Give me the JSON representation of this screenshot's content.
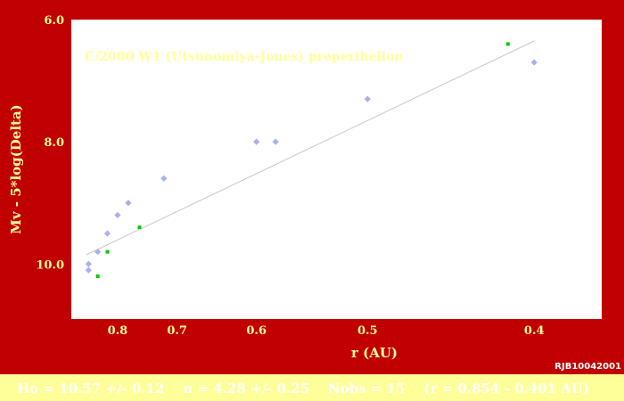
{
  "chart_data": {
    "type": "scatter",
    "title": "C/2000 W1 (Utsunomiya-Jones)  preperihelion",
    "xlabel": "r (AU)",
    "ylabel": "Mv - 5*log(Delta)",
    "credit": "RJB10042001",
    "x_scale": "reciprocal",
    "x_ticks": [
      "0.8",
      "0.7",
      "0.6",
      "0.5",
      "0.4"
    ],
    "y_ticks": [
      "6.0",
      "8.0",
      "10.0"
    ],
    "xlim": [
      0.9,
      0.37
    ],
    "ylim": [
      6.0,
      10.9
    ],
    "grid": false,
    "series": [
      {
        "color": "#aab0f0",
        "marker": "diamond",
        "points": [
          {
            "x": 0.86,
            "y": 10.1
          },
          {
            "x": 0.86,
            "y": 10.0
          },
          {
            "x": 0.84,
            "y": 9.8
          },
          {
            "x": 0.82,
            "y": 9.5
          },
          {
            "x": 0.8,
            "y": 9.2
          },
          {
            "x": 0.78,
            "y": 9.0
          },
          {
            "x": 0.72,
            "y": 8.6
          },
          {
            "x": 0.6,
            "y": 8.0
          },
          {
            "x": 0.58,
            "y": 8.0
          },
          {
            "x": 0.5,
            "y": 7.3
          },
          {
            "x": 0.4,
            "y": 6.7
          }
        ]
      },
      {
        "color": "#00cc00",
        "marker": "square",
        "points": [
          {
            "x": 0.84,
            "y": 10.2
          },
          {
            "x": 0.82,
            "y": 9.8
          },
          {
            "x": 0.76,
            "y": 9.4
          },
          {
            "x": 0.413,
            "y": 6.4
          }
        ]
      }
    ],
    "fit_line": {
      "color": "#c8c8d0",
      "from": {
        "x": 0.865,
        "y": 9.85
      },
      "to": {
        "x": 0.4,
        "y": 6.35
      }
    },
    "fit_summary": "Ho = 10.57 +/- 0.12    n = 4.28 +/- 0.25    Nobs = 15    (r = 0.854 - 0.401 AU)"
  },
  "colors": {
    "frame": "#c00000",
    "plot_bg": "#ffffff",
    "axis_text": "#ffff99",
    "footer_bg": "#ffff99",
    "footer_text": "#ffffff",
    "credit_text": "#ffffff",
    "title_text": "#ffff99"
  }
}
